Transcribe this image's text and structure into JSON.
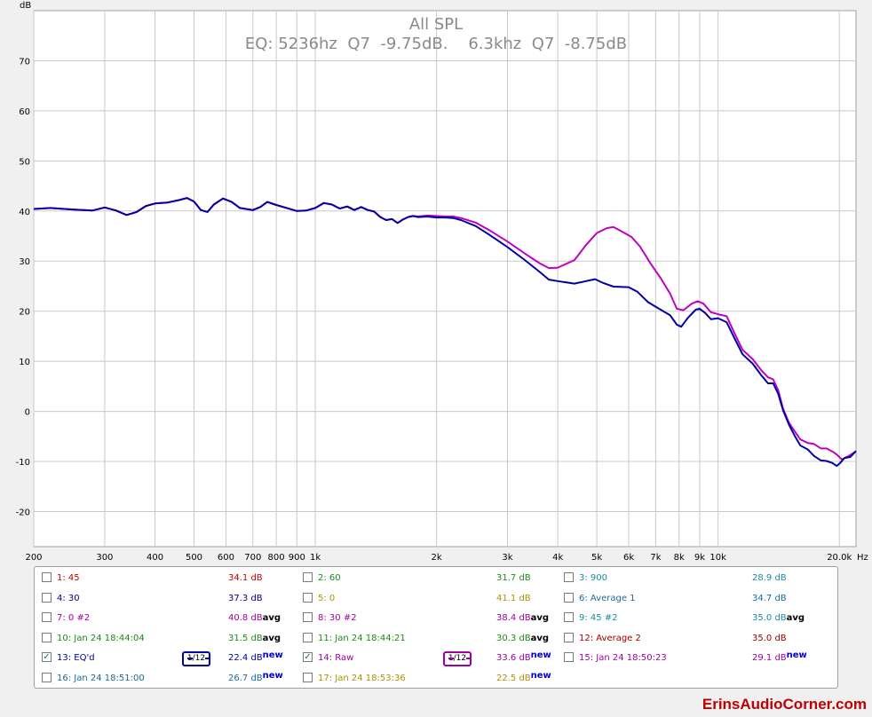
{
  "chart_data": {
    "type": "line",
    "title": "All SPL",
    "subtitle": "EQ: 5236hz  Q7  -9.75dB.    6.3khz  Q7  -8.75dB",
    "ylabel": "dB",
    "xunit": "Hz",
    "xscale": "log",
    "xlim": [
      200,
      22000
    ],
    "ylim": [
      -27,
      80
    ],
    "grid": true,
    "x_ticks": [
      {
        "v": 200,
        "label": "200"
      },
      {
        "v": 300,
        "label": "300"
      },
      {
        "v": 400,
        "label": "400"
      },
      {
        "v": 500,
        "label": "500"
      },
      {
        "v": 600,
        "label": "600"
      },
      {
        "v": 700,
        "label": "700"
      },
      {
        "v": 800,
        "label": "800"
      },
      {
        "v": 900,
        "label": "900"
      },
      {
        "v": 1000,
        "label": "1k"
      },
      {
        "v": 2000,
        "label": "2k"
      },
      {
        "v": 3000,
        "label": "3k"
      },
      {
        "v": 4000,
        "label": "4k"
      },
      {
        "v": 5000,
        "label": "5k"
      },
      {
        "v": 6000,
        "label": "6k"
      },
      {
        "v": 7000,
        "label": "7k"
      },
      {
        "v": 8000,
        "label": "8k"
      },
      {
        "v": 9000,
        "label": "9k"
      },
      {
        "v": 10000,
        "label": "10k"
      },
      {
        "v": 20000,
        "label": "20.0k"
      }
    ],
    "y_ticks": [
      70,
      60,
      50,
      40,
      30,
      20,
      10,
      0,
      -10,
      -20
    ],
    "series": [
      {
        "name": "13: EQ'd",
        "color": "#0000a0",
        "points": [
          [
            200,
            40.4
          ],
          [
            220,
            40.6
          ],
          [
            250,
            40.3
          ],
          [
            280,
            40.1
          ],
          [
            300,
            40.7
          ],
          [
            320,
            40.1
          ],
          [
            340,
            39.2
          ],
          [
            360,
            39.8
          ],
          [
            380,
            41.0
          ],
          [
            400,
            41.5
          ],
          [
            430,
            41.7
          ],
          [
            460,
            42.2
          ],
          [
            480,
            42.6
          ],
          [
            500,
            41.9
          ],
          [
            520,
            40.2
          ],
          [
            540,
            39.8
          ],
          [
            560,
            41.3
          ],
          [
            590,
            42.5
          ],
          [
            620,
            41.8
          ],
          [
            650,
            40.6
          ],
          [
            700,
            40.2
          ],
          [
            730,
            40.8
          ],
          [
            760,
            41.8
          ],
          [
            800,
            41.2
          ],
          [
            850,
            40.6
          ],
          [
            900,
            40.0
          ],
          [
            950,
            40.1
          ],
          [
            1000,
            40.6
          ],
          [
            1050,
            41.6
          ],
          [
            1100,
            41.3
          ],
          [
            1150,
            40.5
          ],
          [
            1200,
            40.9
          ],
          [
            1250,
            40.2
          ],
          [
            1300,
            40.8
          ],
          [
            1350,
            40.2
          ],
          [
            1400,
            39.9
          ],
          [
            1450,
            38.8
          ],
          [
            1500,
            38.2
          ],
          [
            1550,
            38.4
          ],
          [
            1600,
            37.6
          ],
          [
            1650,
            38.3
          ],
          [
            1700,
            38.8
          ],
          [
            1750,
            39.0
          ],
          [
            1800,
            38.8
          ],
          [
            1900,
            38.9
          ],
          [
            2000,
            38.7
          ],
          [
            2100,
            38.7
          ],
          [
            2200,
            38.6
          ],
          [
            2300,
            38.2
          ],
          [
            2500,
            37.0
          ],
          [
            2700,
            35.3
          ],
          [
            3000,
            32.8
          ],
          [
            3300,
            30.3
          ],
          [
            3600,
            27.9
          ],
          [
            3800,
            26.3
          ],
          [
            4000,
            26.0
          ],
          [
            4400,
            25.5
          ],
          [
            4700,
            26.0
          ],
          [
            4950,
            26.4
          ],
          [
            5200,
            25.6
          ],
          [
            5500,
            24.9
          ],
          [
            6000,
            24.8
          ],
          [
            6300,
            23.9
          ],
          [
            6700,
            21.8
          ],
          [
            7200,
            20.3
          ],
          [
            7600,
            19.2
          ],
          [
            7900,
            17.3
          ],
          [
            8100,
            16.9
          ],
          [
            8400,
            18.6
          ],
          [
            8800,
            20.3
          ],
          [
            9000,
            20.5
          ],
          [
            9300,
            19.6
          ],
          [
            9600,
            18.4
          ],
          [
            10000,
            18.6
          ],
          [
            10500,
            17.8
          ],
          [
            11000,
            14.5
          ],
          [
            11500,
            11.4
          ],
          [
            12200,
            9.5
          ],
          [
            12800,
            7.2
          ],
          [
            13300,
            5.6
          ],
          [
            13700,
            5.6
          ],
          [
            14100,
            3.5
          ],
          [
            14500,
            0.2
          ],
          [
            15000,
            -2.7
          ],
          [
            15500,
            -4.9
          ],
          [
            16000,
            -6.8
          ],
          [
            16700,
            -7.6
          ],
          [
            17300,
            -8.9
          ],
          [
            18000,
            -9.8
          ],
          [
            18600,
            -9.9
          ],
          [
            19200,
            -10.3
          ],
          [
            19700,
            -10.9
          ],
          [
            20100,
            -10.3
          ],
          [
            20600,
            -9.3
          ],
          [
            21300,
            -9.1
          ],
          [
            22000,
            -7.9
          ]
        ]
      },
      {
        "name": "14: Raw",
        "color": "#c000c0",
        "points": [
          [
            200,
            40.4
          ],
          [
            220,
            40.6
          ],
          [
            250,
            40.3
          ],
          [
            280,
            40.1
          ],
          [
            300,
            40.7
          ],
          [
            320,
            40.1
          ],
          [
            340,
            39.2
          ],
          [
            360,
            39.8
          ],
          [
            380,
            41.0
          ],
          [
            400,
            41.5
          ],
          [
            430,
            41.7
          ],
          [
            460,
            42.2
          ],
          [
            480,
            42.6
          ],
          [
            500,
            41.9
          ],
          [
            520,
            40.2
          ],
          [
            540,
            39.8
          ],
          [
            560,
            41.3
          ],
          [
            590,
            42.5
          ],
          [
            620,
            41.8
          ],
          [
            650,
            40.6
          ],
          [
            700,
            40.2
          ],
          [
            730,
            40.8
          ],
          [
            760,
            41.8
          ],
          [
            800,
            41.2
          ],
          [
            850,
            40.6
          ],
          [
            900,
            40.0
          ],
          [
            950,
            40.1
          ],
          [
            1000,
            40.6
          ],
          [
            1050,
            41.6
          ],
          [
            1100,
            41.3
          ],
          [
            1150,
            40.5
          ],
          [
            1200,
            40.9
          ],
          [
            1250,
            40.2
          ],
          [
            1300,
            40.8
          ],
          [
            1350,
            40.2
          ],
          [
            1400,
            39.9
          ],
          [
            1450,
            38.8
          ],
          [
            1500,
            38.2
          ],
          [
            1550,
            38.4
          ],
          [
            1600,
            37.6
          ],
          [
            1650,
            38.3
          ],
          [
            1700,
            38.8
          ],
          [
            1750,
            39.0
          ],
          [
            1800,
            38.9
          ],
          [
            1900,
            39.1
          ],
          [
            2000,
            39.0
          ],
          [
            2100,
            38.9
          ],
          [
            2200,
            38.9
          ],
          [
            2300,
            38.6
          ],
          [
            2500,
            37.7
          ],
          [
            2700,
            36.2
          ],
          [
            3000,
            33.9
          ],
          [
            3300,
            31.6
          ],
          [
            3600,
            29.6
          ],
          [
            3800,
            28.6
          ],
          [
            4000,
            28.7
          ],
          [
            4400,
            30.2
          ],
          [
            4700,
            33.2
          ],
          [
            5000,
            35.6
          ],
          [
            5300,
            36.6
          ],
          [
            5500,
            36.8
          ],
          [
            5800,
            35.8
          ],
          [
            6100,
            34.8
          ],
          [
            6400,
            32.9
          ],
          [
            6800,
            29.5
          ],
          [
            7200,
            26.6
          ],
          [
            7600,
            23.5
          ],
          [
            7900,
            20.5
          ],
          [
            8200,
            20.2
          ],
          [
            8600,
            21.5
          ],
          [
            8900,
            22.0
          ],
          [
            9200,
            21.5
          ],
          [
            9600,
            19.8
          ],
          [
            10000,
            19.4
          ],
          [
            10500,
            19.0
          ],
          [
            11000,
            15.5
          ],
          [
            11500,
            12.3
          ],
          [
            12200,
            10.4
          ],
          [
            12800,
            8.2
          ],
          [
            13300,
            6.8
          ],
          [
            13700,
            6.4
          ],
          [
            14100,
            4.2
          ],
          [
            14500,
            0.5
          ],
          [
            15000,
            -2.3
          ],
          [
            15500,
            -4.0
          ],
          [
            16000,
            -5.6
          ],
          [
            16700,
            -6.3
          ],
          [
            17300,
            -6.5
          ],
          [
            18000,
            -7.4
          ],
          [
            18600,
            -7.4
          ],
          [
            19200,
            -8.0
          ],
          [
            19700,
            -8.6
          ],
          [
            20300,
            -9.6
          ],
          [
            21000,
            -9.0
          ],
          [
            22000,
            -8.0
          ]
        ]
      }
    ]
  },
  "legend": {
    "rows": [
      [
        {
          "id": "1",
          "label": "1: 45",
          "value": "34.1 dB",
          "suffix": "",
          "color": "#c00000",
          "checked": false
        },
        {
          "id": "2",
          "label": "2: 60",
          "value": "31.7 dB",
          "suffix": "",
          "color": "#1a8a1a",
          "checked": false
        },
        {
          "id": "3",
          "label": "3: 900",
          "value": "28.9 dB",
          "suffix": "",
          "color": "#1a8aa0",
          "checked": false
        }
      ],
      [
        {
          "id": "4",
          "label": "4: 30",
          "value": "37.3 dB",
          "suffix": "",
          "color": "#000080",
          "checked": false
        },
        {
          "id": "5",
          "label": "5: 0",
          "value": "41.1 dB",
          "suffix": "",
          "color": "#b09000",
          "checked": false
        },
        {
          "id": "6",
          "label": "6: Average 1",
          "value": "34.7 dB",
          "suffix": "",
          "color": "#1a6a9a",
          "checked": false
        }
      ],
      [
        {
          "id": "7",
          "label": "7: 0 #2",
          "value": "40.8 dB",
          "suffix": "avg",
          "color": "#a000a0",
          "checked": false
        },
        {
          "id": "8",
          "label": "8: 30 #2",
          "value": "38.4 dB",
          "suffix": "avg",
          "color": "#a000a0",
          "checked": false
        },
        {
          "id": "9",
          "label": "9: 45 #2",
          "value": "35.0 dB",
          "suffix": "avg",
          "color": "#1a8aa0",
          "checked": false
        }
      ],
      [
        {
          "id": "10",
          "label": "10: Jan 24 18:44:04",
          "value": "31.5 dB",
          "suffix": "avg",
          "color": "#1a8a1a",
          "checked": false
        },
        {
          "id": "11",
          "label": "11: Jan 24 18:44:21",
          "value": "30.3 dB",
          "suffix": "avg",
          "color": "#1a8a1a",
          "checked": false
        },
        {
          "id": "12",
          "label": "12: Average 2",
          "value": "35.0 dB",
          "suffix": "",
          "color": "#a00000",
          "checked": false
        }
      ],
      [
        {
          "id": "13",
          "label": "13: EQ'd",
          "value": "22.4 dB",
          "suffix": "new",
          "color": "#0000a0",
          "checked": true,
          "smoothing": "1/12"
        },
        {
          "id": "14",
          "label": "14: Raw",
          "value": "33.6 dB",
          "suffix": "new",
          "color": "#a000a0",
          "checked": true,
          "smoothing": "1/12"
        },
        {
          "id": "15",
          "label": "15: Jan 24 18:50:23",
          "value": "29.1 dB",
          "suffix": "new",
          "color": "#a000a0",
          "checked": false
        }
      ],
      [
        {
          "id": "16",
          "label": "16: Jan 24 18:51:00",
          "value": "26.7 dB",
          "suffix": "new",
          "color": "#1a6a9a",
          "checked": false
        },
        {
          "id": "17",
          "label": "17: Jan 24 18:53:36",
          "value": "22.5 dB",
          "suffix": "new",
          "color": "#b09000",
          "checked": false
        }
      ]
    ],
    "check_glyph": "✓"
  },
  "brand": "ErinsAudioCorner.com"
}
